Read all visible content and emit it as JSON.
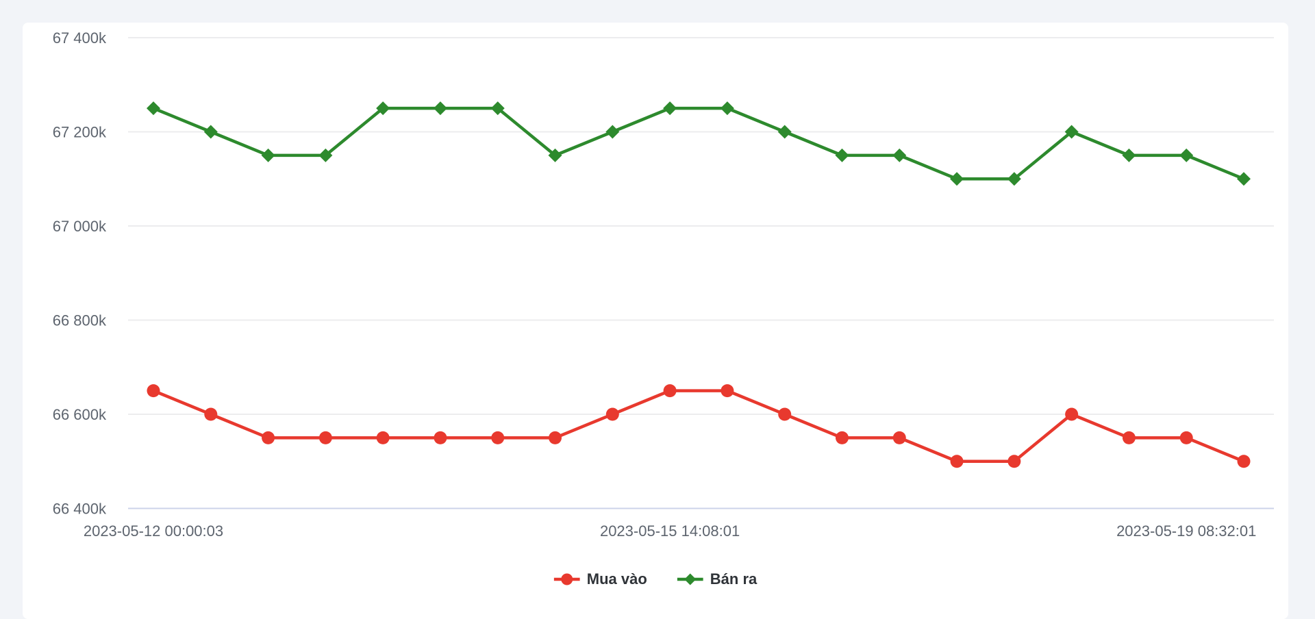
{
  "chart_data": {
    "type": "line",
    "title": "",
    "xlabel": "",
    "ylabel": "",
    "n_points": 20,
    "ylim": [
      66400,
      67400
    ],
    "grid": true,
    "legend_position": "bottom",
    "y_ticks": [
      {
        "value": 67400,
        "label": "67 400k"
      },
      {
        "value": 67200,
        "label": "67 200k"
      },
      {
        "value": 67000,
        "label": "67 000k"
      },
      {
        "value": 66800,
        "label": "66 800k"
      },
      {
        "value": 66600,
        "label": "66 600k"
      },
      {
        "value": 66400,
        "label": "66 400k"
      }
    ],
    "x_tick_indices": [
      0,
      9,
      18
    ],
    "x_tick_labels": [
      "2023-05-12 00:00:03",
      "2023-05-15 14:08:01",
      "2023-05-19 08:32:01"
    ],
    "series": [
      {
        "name": "Mua vào",
        "color": "#e8392e",
        "marker": "circle",
        "values": [
          66650,
          66600,
          66550,
          66550,
          66550,
          66550,
          66550,
          66550,
          66600,
          66650,
          66650,
          66600,
          66550,
          66550,
          66500,
          66500,
          66600,
          66550,
          66550,
          66500
        ]
      },
      {
        "name": "Bán ra",
        "color": "#2d8a2d",
        "marker": "diamond",
        "values": [
          67250,
          67200,
          67150,
          67150,
          67250,
          67250,
          67250,
          67150,
          67200,
          67250,
          67250,
          67200,
          67150,
          67150,
          67100,
          67100,
          67200,
          67150,
          67150,
          67100
        ]
      }
    ]
  },
  "colors": {
    "page_background": "#f2f4f8",
    "card_background": "#ffffff",
    "gridline": "#ececee",
    "axis_baseline": "#ccd3ea",
    "tick_label": "#5d646e",
    "legend_text": "#2f3338"
  }
}
